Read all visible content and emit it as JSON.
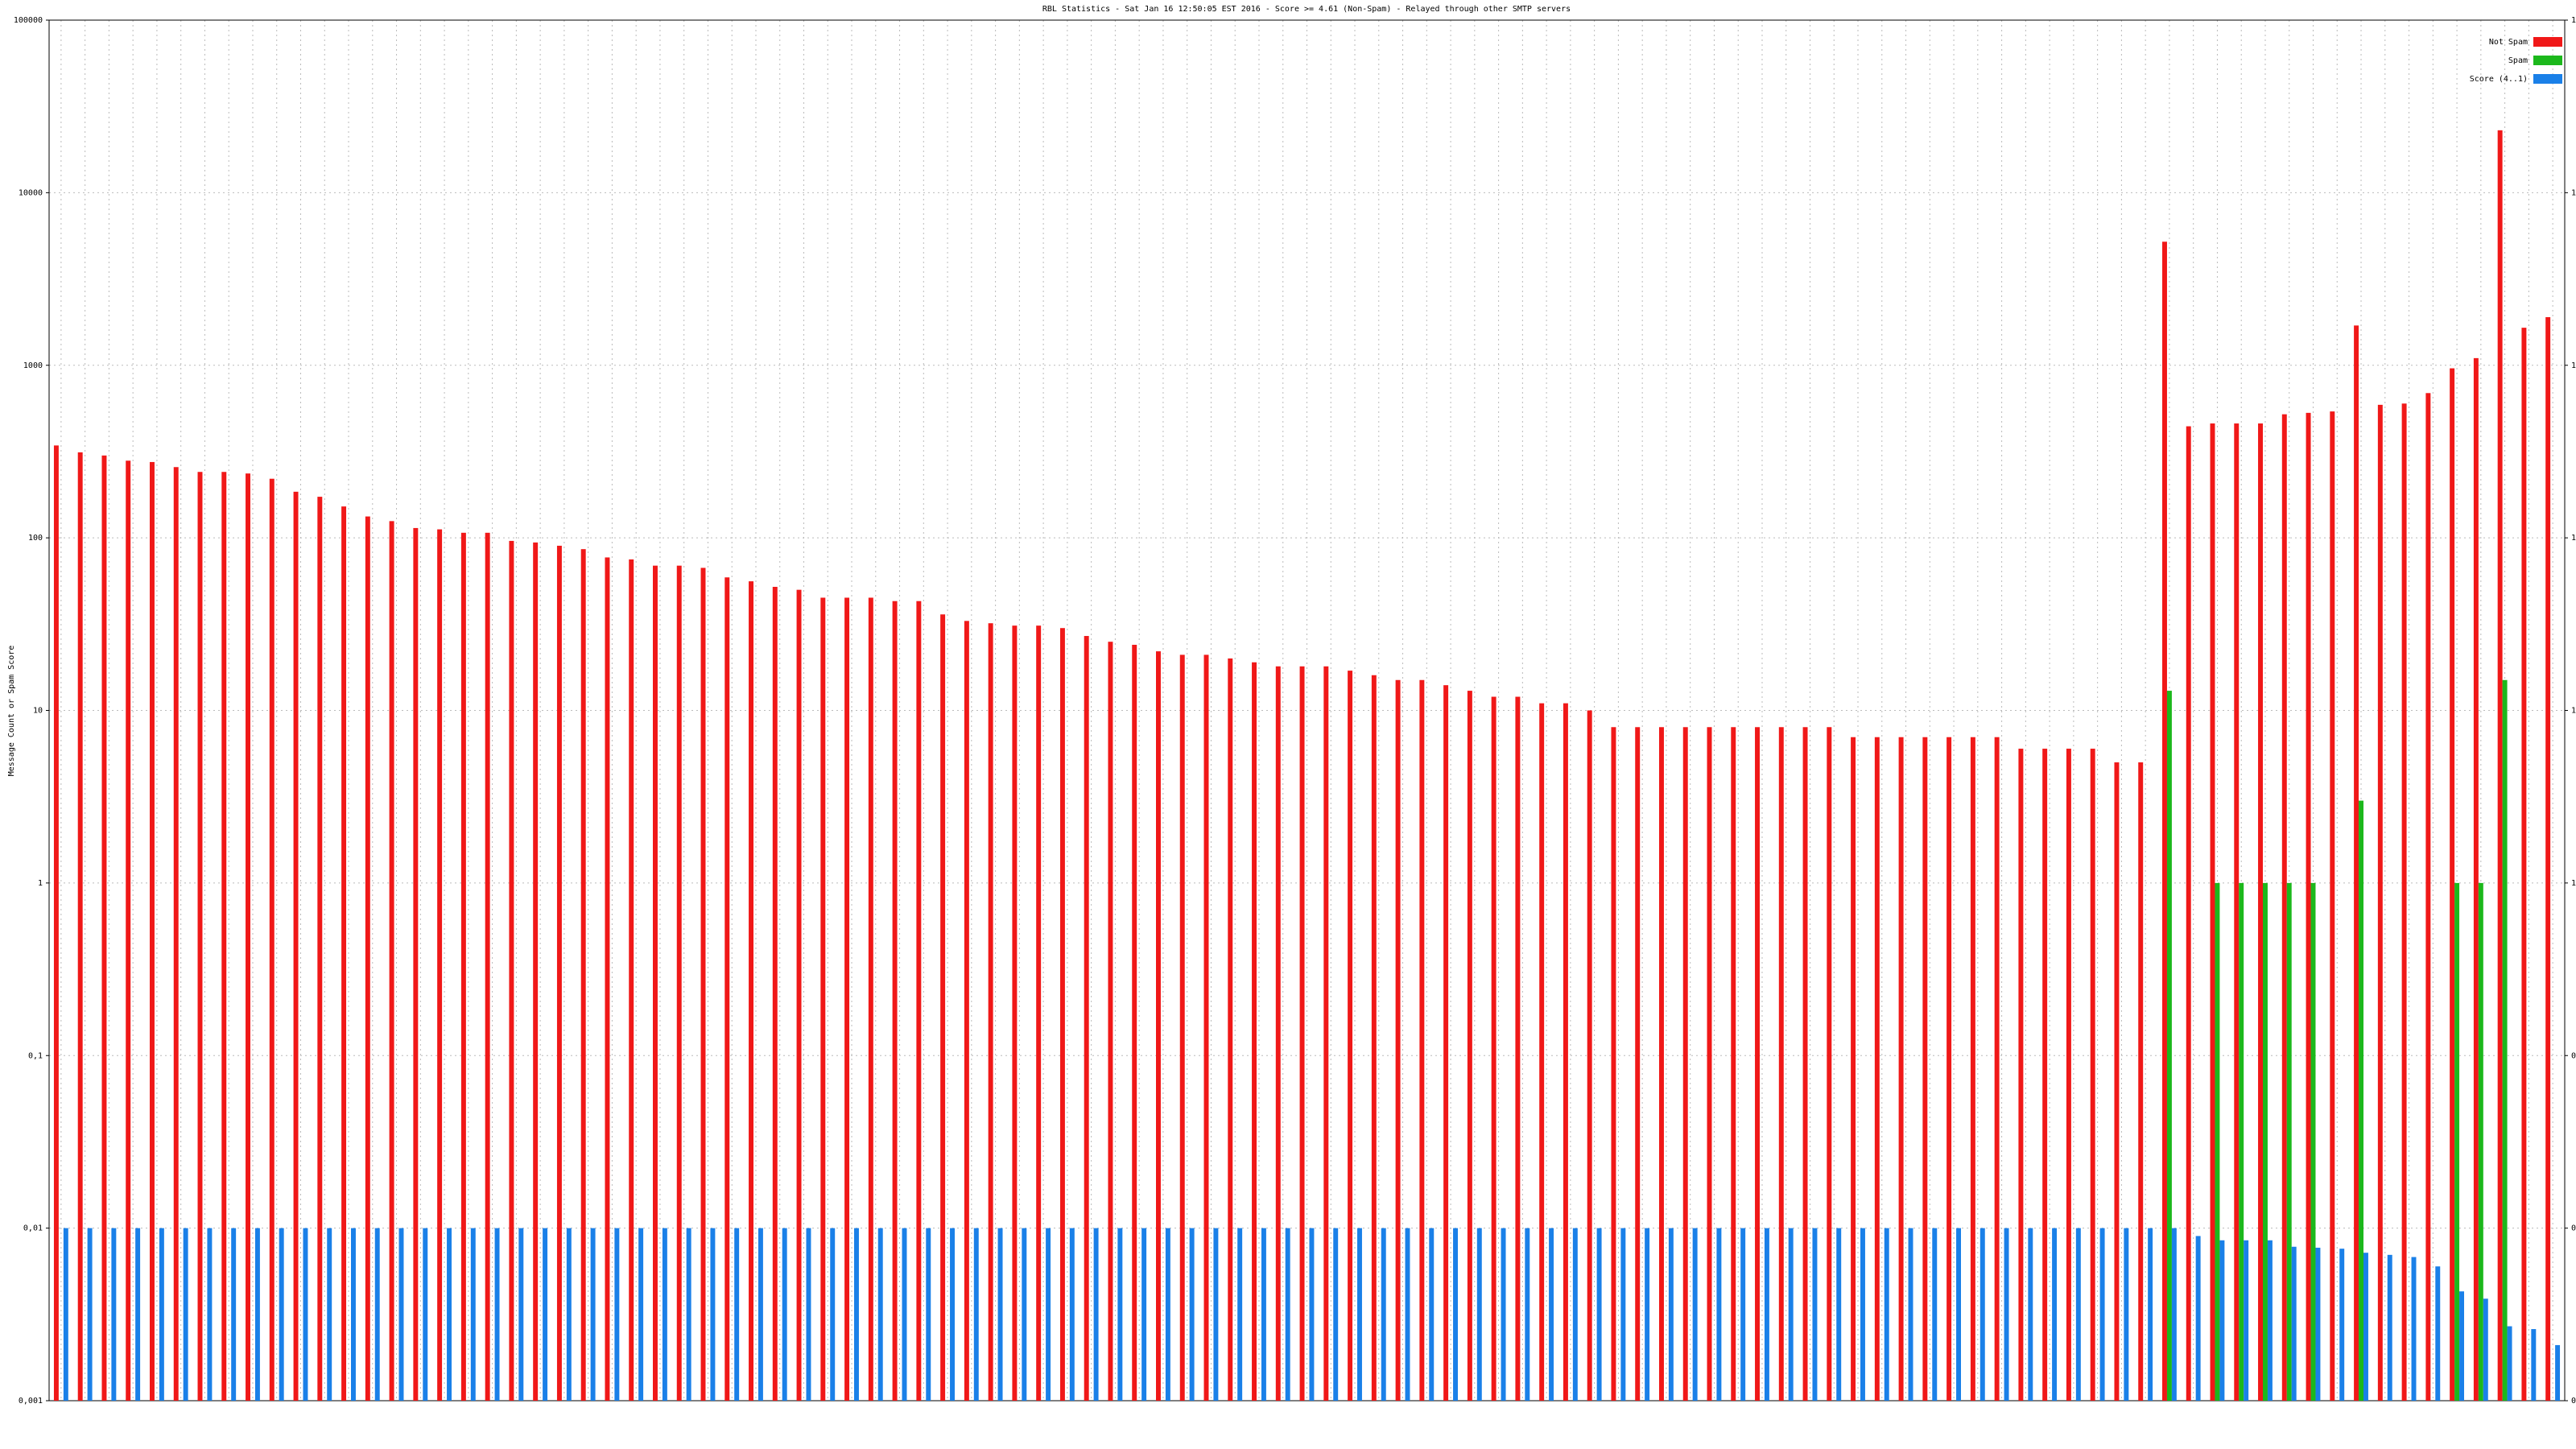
{
  "chart_data": {
    "type": "bar",
    "title": "RBL Statistics - Sat Jan 16 12:50:05 EST 2016 - Score >= 4.61 (Non-Spam) - Relayed through other SMTP servers",
    "y_label": "Message Count or Spam Score",
    "log_scale": true,
    "grid": true,
    "legend": "upper right",
    "ylim": [
      0.001,
      100000
    ],
    "yticks": [
      {
        "value": 0.001,
        "label": "0,001"
      },
      {
        "value": 0.01,
        "label": "0,01"
      },
      {
        "value": 0.1,
        "label": "0,1"
      },
      1,
      10,
      100,
      1000,
      10000,
      100000
    ],
    "categories": [
      null,
      null,
      null,
      null,
      null,
      null,
      null,
      null,
      null,
      null,
      null,
      null,
      null,
      null,
      null,
      null,
      null,
      null,
      null,
      null,
      null,
      null,
      null,
      null,
      null,
      null,
      null,
      null,
      null,
      null,
      null,
      null,
      null,
      null,
      null,
      null,
      null,
      null,
      null,
      null,
      null,
      null,
      null,
      null,
      null,
      null,
      null,
      null,
      null,
      null,
      null,
      null,
      null,
      null,
      null,
      null,
      null,
      null,
      null,
      null,
      null,
      null,
      null,
      null,
      null,
      null,
      null,
      null,
      null,
      null,
      null,
      null,
      null,
      null,
      null,
      null,
      null,
      null,
      null,
      null,
      null,
      null,
      null,
      null,
      null,
      null,
      null,
      null,
      null,
      null,
      null,
      null,
      null,
      null,
      null,
      null,
      null,
      null,
      null,
      null,
      null,
      null,
      null,
      null,
      null
    ],
    "series": [
      {
        "name": "Not Spam",
        "color": "#f01818",
        "values": [
          343,
          313,
          300,
          280,
          275,
          257,
          241,
          241,
          236,
          220,
          185,
          173,
          152,
          133,
          125,
          114,
          112,
          107,
          107,
          96,
          94,
          90,
          86,
          77,
          75,
          69,
          69,
          67,
          59,
          56,
          52,
          50,
          45,
          45,
          45,
          43,
          43,
          36,
          33,
          32,
          31,
          31,
          30,
          27,
          25,
          24,
          22,
          21,
          21,
          20,
          19,
          18,
          18,
          18,
          17,
          16,
          15,
          15,
          14,
          13,
          12,
          12,
          11,
          11,
          10,
          8,
          8,
          8,
          8,
          8,
          8,
          8,
          8,
          8,
          8,
          7,
          7,
          7,
          7,
          7,
          7,
          7,
          6,
          6,
          6,
          6,
          5,
          5,
          5200,
          443,
          460,
          460,
          460,
          520,
          530,
          540,
          1700,
          590,
          600,
          690,
          960,
          1100,
          23000,
          1650,
          1900
        ]
      },
      {
        "name": "Spam",
        "color": "#1cb81c",
        "values": [
          null,
          null,
          null,
          null,
          null,
          null,
          null,
          null,
          null,
          null,
          null,
          null,
          null,
          null,
          null,
          null,
          null,
          null,
          null,
          null,
          null,
          null,
          null,
          null,
          null,
          null,
          null,
          null,
          null,
          null,
          null,
          null,
          null,
          null,
          null,
          null,
          null,
          null,
          null,
          null,
          null,
          null,
          null,
          null,
          null,
          null,
          null,
          null,
          null,
          null,
          null,
          null,
          null,
          null,
          null,
          null,
          null,
          null,
          null,
          null,
          null,
          null,
          null,
          null,
          null,
          null,
          null,
          null,
          null,
          null,
          null,
          null,
          null,
          null,
          null,
          null,
          null,
          null,
          null,
          null,
          null,
          null,
          null,
          null,
          null,
          null,
          null,
          null,
          13,
          null,
          1,
          1,
          1,
          1,
          1,
          null,
          3,
          null,
          null,
          null,
          1,
          1,
          15,
          null,
          null
        ]
      },
      {
        "name": "Score (4..1)",
        "color": "#1a80e8",
        "values": [
          0.01,
          0.01,
          0.01,
          0.01,
          0.01,
          0.01,
          0.01,
          0.01,
          0.01,
          0.01,
          0.01,
          0.01,
          0.01,
          0.01,
          0.01,
          0.01,
          0.01,
          0.01,
          0.01,
          0.01,
          0.01,
          0.01,
          0.01,
          0.01,
          0.01,
          0.01,
          0.01,
          0.01,
          0.01,
          0.01,
          0.01,
          0.01,
          0.01,
          0.01,
          0.01,
          0.01,
          0.01,
          0.01,
          0.01,
          0.01,
          0.01,
          0.01,
          0.01,
          0.01,
          0.01,
          0.01,
          0.01,
          0.01,
          0.01,
          0.01,
          0.01,
          0.01,
          0.01,
          0.01,
          0.01,
          0.01,
          0.01,
          0.01,
          0.01,
          0.01,
          0.01,
          0.01,
          0.01,
          0.01,
          0.01,
          0.01,
          0.01,
          0.01,
          0.01,
          0.01,
          0.01,
          0.01,
          0.01,
          0.01,
          0.01,
          0.01,
          0.01,
          0.01,
          0.01,
          0.01,
          0.01,
          0.01,
          0.01,
          0.01,
          0.01,
          0.01,
          0.01,
          0.01,
          0.01,
          0.009,
          0.0085,
          0.0085,
          0.0085,
          0.0078,
          0.0077,
          0.0076,
          0.0072,
          0.007,
          0.0068,
          0.006,
          0.0043,
          0.0039,
          0.0027,
          0.0026,
          0.0021
        ]
      }
    ]
  }
}
